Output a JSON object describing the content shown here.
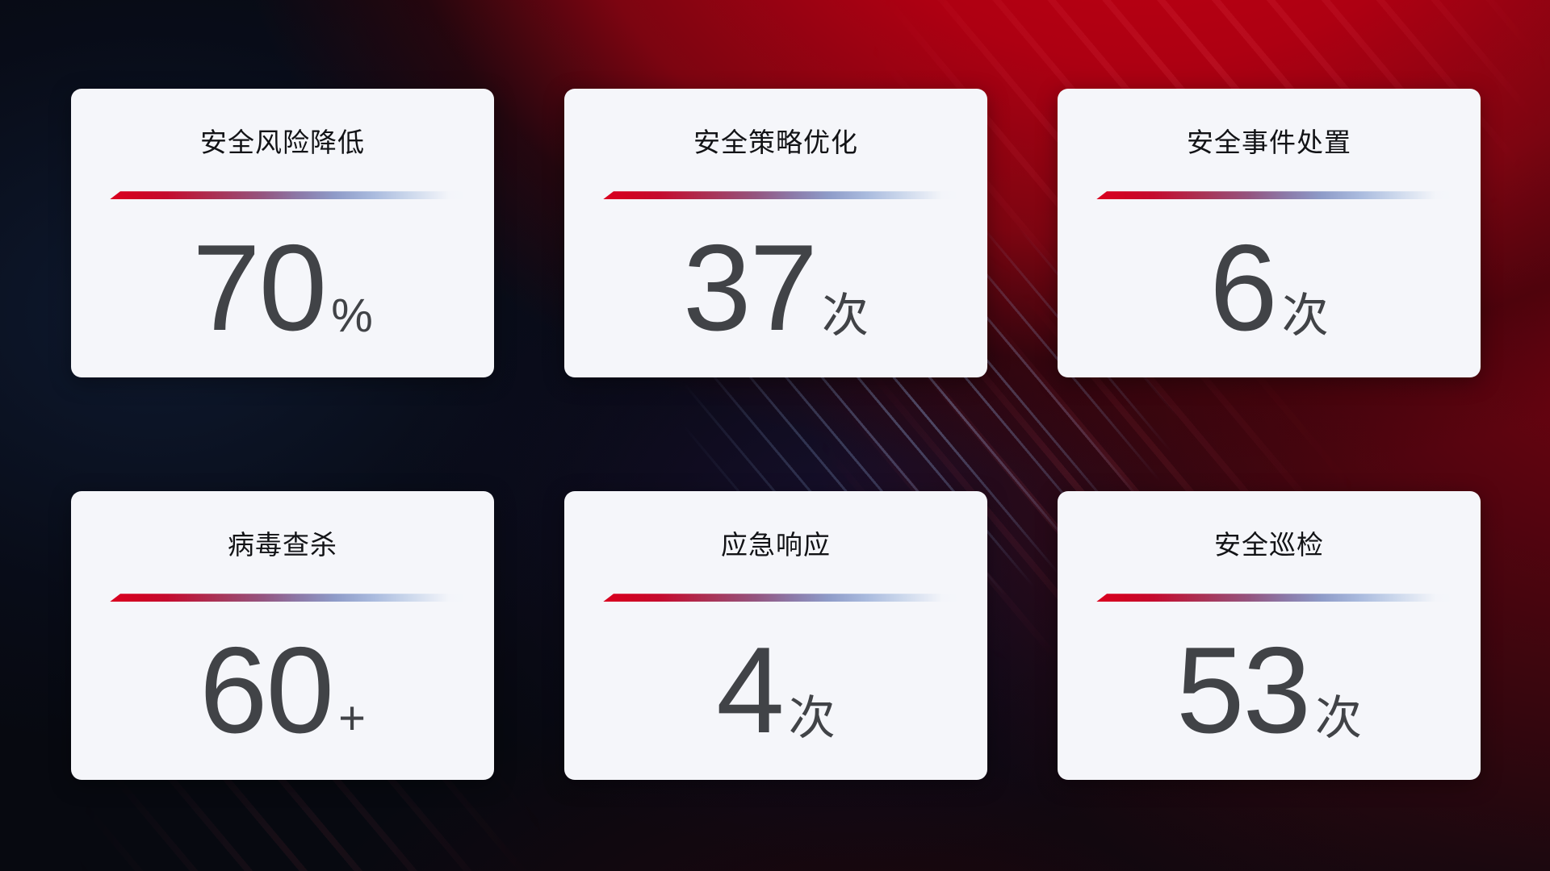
{
  "colors": {
    "accent_red": "#d80021",
    "accent_blue": "#9db6dc",
    "card_bg": "#f5f6fa",
    "title_text": "#121316",
    "value_text": "#414347",
    "bg_base": "#070910"
  },
  "cards": [
    {
      "id": "risk-reduction",
      "title": "安全风险降低",
      "value": "70",
      "unit": "%"
    },
    {
      "id": "policy-optimization",
      "title": "安全策略优化",
      "value": "37",
      "unit": "次"
    },
    {
      "id": "incident-handling",
      "title": "安全事件处置",
      "value": "6",
      "unit": "次"
    },
    {
      "id": "virus-scan",
      "title": "病毒查杀",
      "value": "60",
      "unit": "+"
    },
    {
      "id": "emergency-response",
      "title": "应急响应",
      "value": "4",
      "unit": "次"
    },
    {
      "id": "security-inspection",
      "title": "安全巡检",
      "value": "53",
      "unit": "次"
    }
  ]
}
